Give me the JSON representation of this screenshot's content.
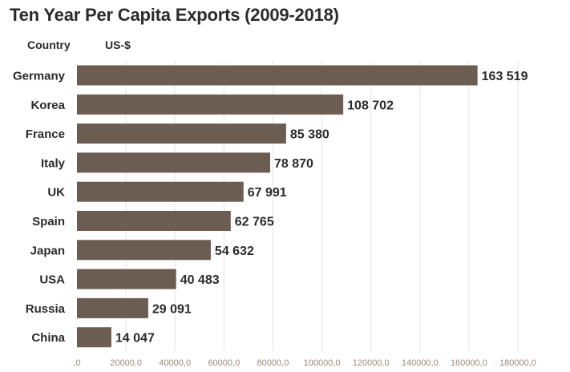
{
  "title": "Ten Year Per Capita Exports (2009-2018)",
  "col_country": "Country",
  "col_value": "US-$",
  "colors": {
    "bar": "#6b5d51",
    "grid": "#e6e3df",
    "tick": "#9a8a78"
  },
  "chart_data": {
    "type": "bar",
    "orientation": "horizontal",
    "title": "Ten Year Per Capita Exports (2009-2018)",
    "xlabel": "US-$",
    "ylabel": "Country",
    "categories": [
      "Germany",
      "Korea",
      "France",
      "Italy",
      "UK",
      "Spain",
      "Japan",
      "USA",
      "Russia",
      "China"
    ],
    "values": [
      163519,
      108702,
      85380,
      78870,
      67991,
      62765,
      54632,
      40483,
      29091,
      14047
    ],
    "value_labels": [
      "163 519",
      "108 702",
      "85 380",
      "78 870",
      "67 991",
      "62 765",
      "54 632",
      "40 483",
      "29 091",
      "14 047"
    ],
    "xlim": [
      0,
      180000
    ],
    "xticks": [
      0,
      20000,
      40000,
      60000,
      80000,
      100000,
      120000,
      140000,
      160000,
      180000
    ],
    "xtick_labels": [
      ",0",
      "20000,0",
      "40000,0",
      "60000,0",
      "80000,0",
      "100000,0",
      "120000,0",
      "140000,0",
      "160000,0",
      "180000,0"
    ],
    "grid": true,
    "legend": "none"
  }
}
